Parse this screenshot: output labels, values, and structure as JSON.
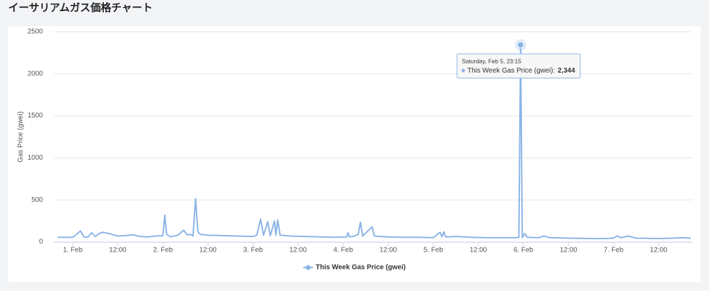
{
  "chart_data": {
    "type": "line",
    "title": "イーサリアムガス価格チャート",
    "y_label": "Gas Price (gwei)",
    "x": [
      -4,
      -2,
      0,
      1,
      2,
      3,
      4,
      5,
      6,
      7,
      8,
      10,
      12,
      14,
      16,
      18,
      20,
      22,
      24,
      24.5,
      25,
      26,
      28,
      29.5,
      30.5,
      31.5,
      32,
      32.7,
      33.3,
      34,
      36,
      40,
      44,
      48,
      49,
      50,
      50.8,
      51.9,
      52.6,
      53.7,
      54.1,
      54.6,
      55.2,
      58,
      62,
      66,
      70,
      73,
      73.3,
      73.7,
      75,
      76,
      76.6,
      77.2,
      79.7,
      80.3,
      84,
      88,
      92,
      96,
      97.8,
      98.3,
      98.8,
      99.3,
      102,
      106,
      110,
      114,
      118,
      118.8,
      119.25,
      119.7,
      120.3,
      121,
      124,
      125.5,
      127,
      132,
      138,
      142,
      144,
      145,
      146,
      148,
      150,
      156,
      160,
      162,
      164.6
    ],
    "series": [
      {
        "name": "This Week Gas Price (gwei)",
        "color": "#8ab4e6",
        "values": [
          55,
          54,
          55,
          90,
          130,
          60,
          55,
          110,
          65,
          100,
          115,
          95,
          70,
          75,
          85,
          65,
          60,
          70,
          75,
          320,
          90,
          60,
          80,
          140,
          85,
          90,
          70,
          515,
          120,
          90,
          80,
          75,
          70,
          65,
          80,
          270,
          80,
          240,
          75,
          250,
          80,
          260,
          80,
          70,
          65,
          60,
          55,
          60,
          110,
          60,
          70,
          90,
          235,
          70,
          180,
          70,
          60,
          55,
          55,
          50,
          115,
          60,
          120,
          60,
          65,
          55,
          50,
          50,
          50,
          55,
          2344,
          50,
          100,
          55,
          50,
          70,
          50,
          45,
          40,
          40,
          45,
          70,
          50,
          70,
          45,
          40,
          45,
          50,
          45
        ]
      }
    ],
    "xlim": [
      -5,
      165
    ],
    "xticks": [
      {
        "value": 0,
        "label": "1. Feb"
      },
      {
        "value": 12,
        "label": "12:00"
      },
      {
        "value": 24,
        "label": "2. Feb"
      },
      {
        "value": 36,
        "label": "12:00"
      },
      {
        "value": 48,
        "label": "3. Feb"
      },
      {
        "value": 60,
        "label": "12:00"
      },
      {
        "value": 72,
        "label": "4. Feb"
      },
      {
        "value": 84,
        "label": "12:00"
      },
      {
        "value": 96,
        "label": "5. Feb"
      },
      {
        "value": 108,
        "label": "12:00"
      },
      {
        "value": 120,
        "label": "6. Feb"
      },
      {
        "value": 132,
        "label": "12:00"
      },
      {
        "value": 144,
        "label": "7. Feb"
      },
      {
        "value": 156,
        "label": "12:00"
      }
    ],
    "ylim": [
      0,
      2500
    ],
    "yticks": [
      0,
      500,
      1000,
      1500,
      2000,
      2500
    ],
    "grid": true,
    "tooltip": {
      "x": 119.25,
      "title": "Saturday, Feb 5, 23:15",
      "label": "This Week Gas Price (gwei):",
      "value": 2344,
      "value_label": "2,344"
    }
  }
}
